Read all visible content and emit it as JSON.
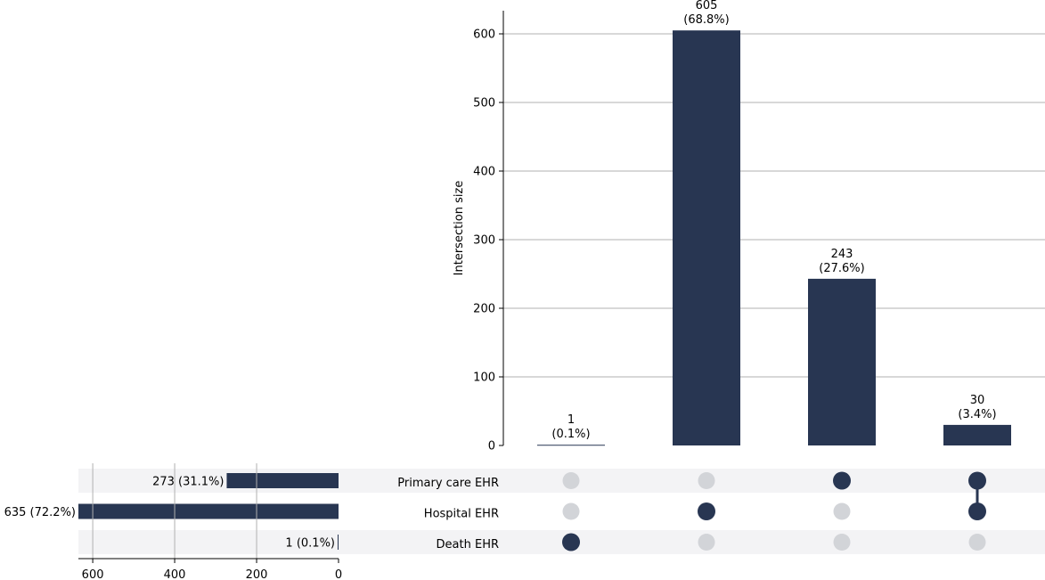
{
  "chart_data": {
    "type": "upset",
    "ylabel": "Intersection size",
    "ylim": [
      0,
      635
    ],
    "yticks": [
      0,
      100,
      200,
      300,
      400,
      500,
      600
    ],
    "grid": true,
    "sets": [
      {
        "name": "Primary care EHR",
        "size": 273,
        "label": "273 (31.1%)"
      },
      {
        "name": "Hospital EHR",
        "size": 635,
        "label": "635 (72.2%)"
      },
      {
        "name": "Death EHR",
        "size": 1,
        "label": "1 (0.1%)"
      }
    ],
    "set_size_xlim": [
      635,
      0
    ],
    "set_size_ticks": [
      600,
      400,
      200,
      0
    ],
    "intersections": [
      {
        "value": 1,
        "count_label": "1",
        "pct_label": "(0.1%)",
        "members": [
          false,
          false,
          true
        ]
      },
      {
        "value": 605,
        "count_label": "605",
        "pct_label": "(68.8%)",
        "members": [
          false,
          true,
          false
        ]
      },
      {
        "value": 243,
        "count_label": "243",
        "pct_label": "(27.6%)",
        "members": [
          true,
          false,
          false
        ]
      },
      {
        "value": 30,
        "count_label": "30",
        "pct_label": "(3.4%)",
        "members": [
          true,
          true,
          false
        ]
      }
    ],
    "colors": {
      "bar": "#283652",
      "dot_active": "#283652",
      "dot_inactive": "#d2d4d8",
      "stripe": "#f3f3f5",
      "grid": "#b0b0b0"
    }
  }
}
